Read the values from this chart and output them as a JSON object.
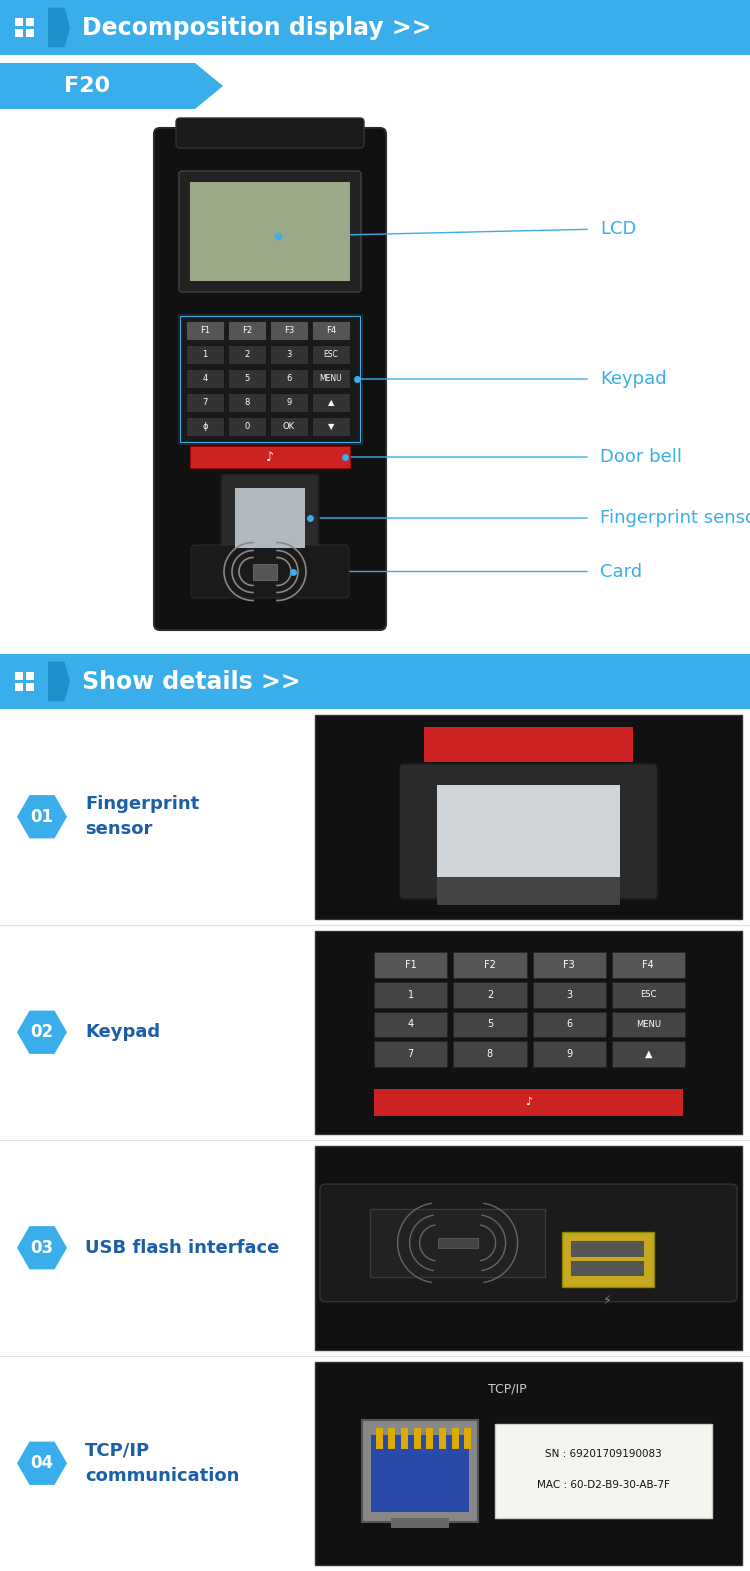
{
  "header1_text": "Decomposition display >>",
  "header2_text": "Show details >>",
  "f20_label": "F20",
  "header_bg": "#3aaeea",
  "bg_color": "#ffffff",
  "details": [
    {
      "num": "01",
      "title": "Fingerprint\nsensor"
    },
    {
      "num": "02",
      "title": "Keypad"
    },
    {
      "num": "03",
      "title": "USB flash interface"
    },
    {
      "num": "04",
      "title": "TCP/IP\ncommunication"
    }
  ],
  "accent_color": "#3aaeea",
  "text_dark": "#1a5fa8",
  "ann_color": "#3aaeea",
  "ann_labels": [
    "LCD",
    "Keypad",
    "Door bell",
    "Fingerprint sensor",
    "Card"
  ],
  "key_labels_row0": [
    "F1",
    "F2",
    "F3",
    "F4"
  ],
  "key_labels_row1": [
    "1",
    "2",
    "3",
    "ESC"
  ],
  "key_labels_row2": [
    "4",
    "5",
    "6",
    "MENU"
  ],
  "key_labels_row3": [
    "7",
    "8",
    "9",
    "▲"
  ],
  "key_labels_row4": [
    "ɸ",
    "0",
    "OK",
    "▼"
  ],
  "sn_text": "SN : 69201709190083",
  "mac_text": "MAC : 60-D2-B9-30-AB-7F",
  "tcpip_text": "TCP/IP",
  "usb_symbol": "⚡"
}
